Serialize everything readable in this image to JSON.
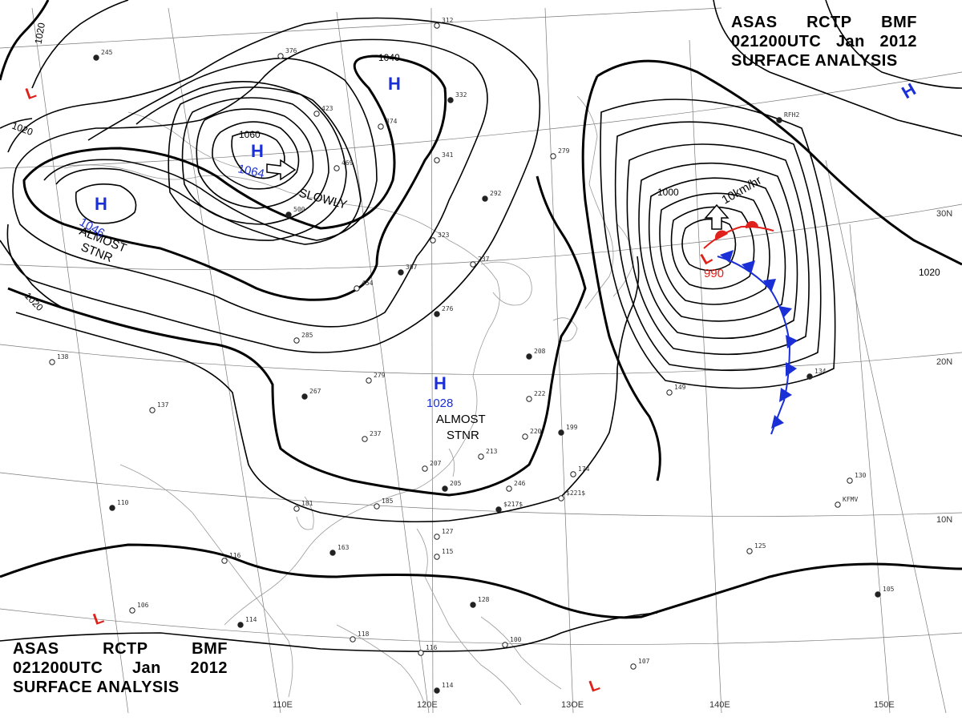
{
  "title": {
    "top": {
      "line1": [
        "ASAS",
        "RCTP",
        "BMF"
      ],
      "line2": [
        "021200UTC",
        "Jan",
        "2012"
      ],
      "line3": "SURFACE ANALYSIS"
    },
    "bottom": {
      "line1": [
        "ASAS",
        "RCTP",
        "BMF"
      ],
      "line2": [
        "021200UTC",
        "Jan",
        "2012"
      ],
      "line3": "SURFACE ANALYSIS"
    }
  },
  "colors": {
    "high": "#1a2fd6",
    "low": "#e0201a",
    "isobar": "#000000",
    "grid": "#7a7a7a",
    "coast": "#9a9a9a",
    "cold_front": "#1a2fd6",
    "warm_front": "#e0201a"
  },
  "pressure_systems": [
    {
      "type": "H",
      "label": "H",
      "value": "1064"
    },
    {
      "type": "H",
      "label": "H",
      "value": "1046"
    },
    {
      "type": "H",
      "label": "H",
      "value": ""
    },
    {
      "type": "H",
      "label": "H",
      "value": "1028"
    },
    {
      "type": "H",
      "label": "H",
      "value": ""
    },
    {
      "type": "L",
      "label": "L",
      "value": "990"
    },
    {
      "type": "L",
      "label": "L",
      "value": ""
    },
    {
      "type": "L",
      "label": "L",
      "value": ""
    },
    {
      "type": "L",
      "label": "L",
      "value": ""
    }
  ],
  "motion_notes": {
    "slowly": "SLOWLY",
    "almost": "ALMOST",
    "stnr": "STNR",
    "speed": "10km/hr"
  },
  "isobar_labels": {
    "i1020a": "1020",
    "i1020b": "1020",
    "i1020c": "1020",
    "i1020d": "1020",
    "i1040": "1040",
    "i1060": "1060",
    "i1000": "1000"
  },
  "lon_labels": [
    "110E",
    "120E",
    "13OE",
    "140E",
    "150E"
  ],
  "lat_labels": [
    "30N",
    "20N",
    "10N"
  ],
  "station_obs": [
    "245",
    "376",
    "312",
    "332",
    "423",
    "469",
    "500",
    "374",
    "341",
    "292",
    "279",
    "323",
    "307",
    "454",
    "237",
    "276",
    "285",
    "279",
    "267",
    "237",
    "207",
    "205",
    "213",
    "220",
    "208",
    "181",
    "185",
    "163",
    "127",
    "115",
    "128",
    "100",
    "116",
    "114",
    "107",
    "149",
    "134",
    "130",
    "125",
    "105",
    "138",
    "137",
    "110",
    "106",
    "116",
    "114",
    "118",
    "222",
    "199",
    "174",
    "246",
    "$217$",
    "$221$",
    "KFMV",
    "RFH2"
  ]
}
